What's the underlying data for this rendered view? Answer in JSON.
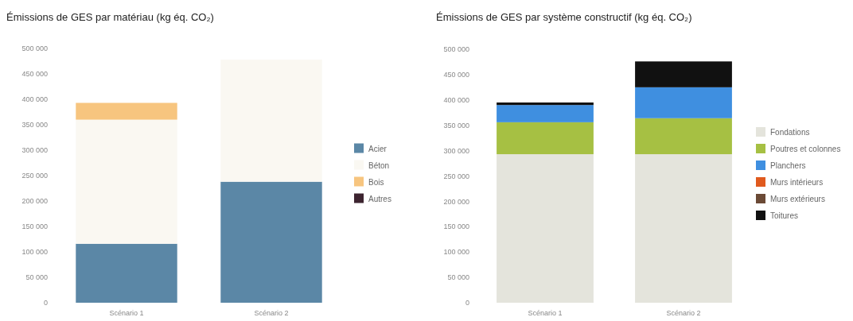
{
  "chart_data": [
    {
      "type": "bar",
      "title": "Émissions de GES par matériau (kg éq. CO₂)",
      "categories": [
        "Scénario 1",
        "Scénario 2"
      ],
      "stacked": true,
      "legend": "right",
      "ylim": [
        0,
        500000
      ],
      "yticks": [
        0,
        {
          "value": 50000,
          "label": "50 000"
        },
        {
          "value": 100000,
          "label": "100 000"
        },
        {
          "value": 150000,
          "label": "150 000"
        },
        {
          "value": 200000,
          "label": "200 000"
        },
        {
          "value": 250000,
          "label": "250 000"
        },
        {
          "value": 300000,
          "label": "300 000"
        },
        {
          "value": 350000,
          "label": "350 000"
        },
        {
          "value": 400000,
          "label": "400 000"
        },
        {
          "value": 450000,
          "label": "450 000"
        },
        {
          "value": 500000,
          "label": "500 000"
        }
      ],
      "series": [
        {
          "name": "Acier",
          "color": "#5b87a6",
          "values": [
            116000,
            238000
          ]
        },
        {
          "name": "Béton",
          "color": "#faf8f2",
          "values": [
            244000,
            240000
          ]
        },
        {
          "name": "Bois",
          "color": "#f7c57f",
          "values": [
            33000,
            0
          ]
        },
        {
          "name": "Autres",
          "color": "#3d2430",
          "values": [
            0,
            0
          ]
        }
      ]
    },
    {
      "type": "bar",
      "title": "Émissions de GES par système constructif (kg éq. CO₂)",
      "categories": [
        "Scénario 1",
        "Scénario 2"
      ],
      "stacked": true,
      "legend": "right",
      "ylim": [
        0,
        500000
      ],
      "yticks": [
        0,
        {
          "value": 50000,
          "label": "50 000"
        },
        {
          "value": 100000,
          "label": "100 000"
        },
        {
          "value": 150000,
          "label": "150 000"
        },
        {
          "value": 200000,
          "label": "200 000"
        },
        {
          "value": 250000,
          "label": "250 000"
        },
        {
          "value": 300000,
          "label": "300 000"
        },
        {
          "value": 350000,
          "label": "350 000"
        },
        {
          "value": 400000,
          "label": "400 000"
        },
        {
          "value": 450000,
          "label": "450 000"
        },
        {
          "value": 500000,
          "label": "500 000"
        }
      ],
      "series": [
        {
          "name": "Fondations",
          "color": "#e4e4dc",
          "values": [
            293000,
            293000
          ]
        },
        {
          "name": "Poutres et colonnes",
          "color": "#a6c043",
          "values": [
            63000,
            71000
          ]
        },
        {
          "name": "Planchers",
          "color": "#3f8fe0",
          "values": [
            34000,
            61000
          ]
        },
        {
          "name": "Murs intérieurs",
          "color": "#e05a1e",
          "values": [
            0,
            0
          ]
        },
        {
          "name": "Murs extérieurs",
          "color": "#6b4a36",
          "values": [
            0,
            0
          ]
        },
        {
          "name": "Toitures",
          "color": "#111111",
          "values": [
            5000,
            51000
          ]
        }
      ]
    }
  ]
}
